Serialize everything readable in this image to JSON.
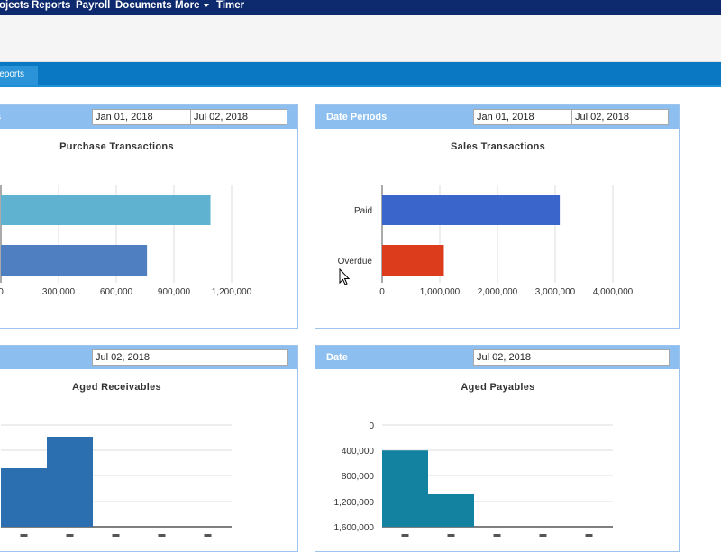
{
  "nav": {
    "items": [
      "ojects",
      "Reports",
      "Payroll",
      "Documents",
      "More",
      "Timer"
    ]
  },
  "tabs": {
    "active": "Reports"
  },
  "panels": {
    "purchase": {
      "head_title": "s",
      "date_from": "Jan 01, 2018",
      "date_to": "Jul 02, 2018",
      "chart_title": "Purchase Transactions"
    },
    "sales": {
      "head_title": "Date Periods",
      "date_from": "Jan 01, 2018",
      "date_to": "Jul 02, 2018",
      "chart_title": "Sales Transactions"
    },
    "receivables": {
      "date": "Jul 02, 2018",
      "chart_title": "Aged Receivables"
    },
    "payables": {
      "head_title": "Date",
      "date": "Jul 02, 2018",
      "chart_title": "Aged Payables"
    }
  },
  "colors": {
    "nav_bg": "#0d2a6e",
    "tab_bg": "#0b78c4",
    "panel_head": "#8cbff0",
    "purchase_bar_1": "#5fb2d0",
    "purchase_bar_2": "#4f7fc0",
    "sales_paid": "#3a66cc",
    "sales_overdue": "#dc3b1c",
    "receivables_bar": "#2b6fb0",
    "payables_bar": "#1282a0"
  },
  "chart_data": [
    {
      "type": "bar",
      "orientation": "horizontal",
      "title": "Purchase Transactions",
      "categories": [
        "",
        ""
      ],
      "values": [
        1090000,
        760000
      ],
      "xlim": [
        0,
        1200000
      ],
      "xticks": [
        "0",
        "300,000",
        "600,000",
        "900,000",
        "1,200,000"
      ],
      "grid": true
    },
    {
      "type": "bar",
      "orientation": "horizontal",
      "title": "Sales Transactions",
      "categories": [
        "Paid",
        "Overdue"
      ],
      "values": [
        3080000,
        1070000
      ],
      "xlim": [
        0,
        4000000
      ],
      "xticks": [
        "0",
        "1,000,000",
        "2,000,000",
        "3,000,000",
        "4,000,000"
      ],
      "grid": true
    },
    {
      "type": "bar",
      "title": "Aged Receivables",
      "categories": [
        "",
        "",
        "",
        "",
        ""
      ],
      "values": [
        0.65,
        1.0,
        0,
        0,
        0
      ],
      "grid": true
    },
    {
      "type": "bar",
      "title": "Aged Payables",
      "categories": [
        "",
        "",
        "",
        "",
        ""
      ],
      "values": [
        1200000,
        510000,
        0,
        0,
        0
      ],
      "ylim": [
        0,
        1600000
      ],
      "yticks": [
        "0",
        "400,000",
        "800,000",
        "1,200,000",
        "1,600,000"
      ],
      "grid": true
    }
  ]
}
